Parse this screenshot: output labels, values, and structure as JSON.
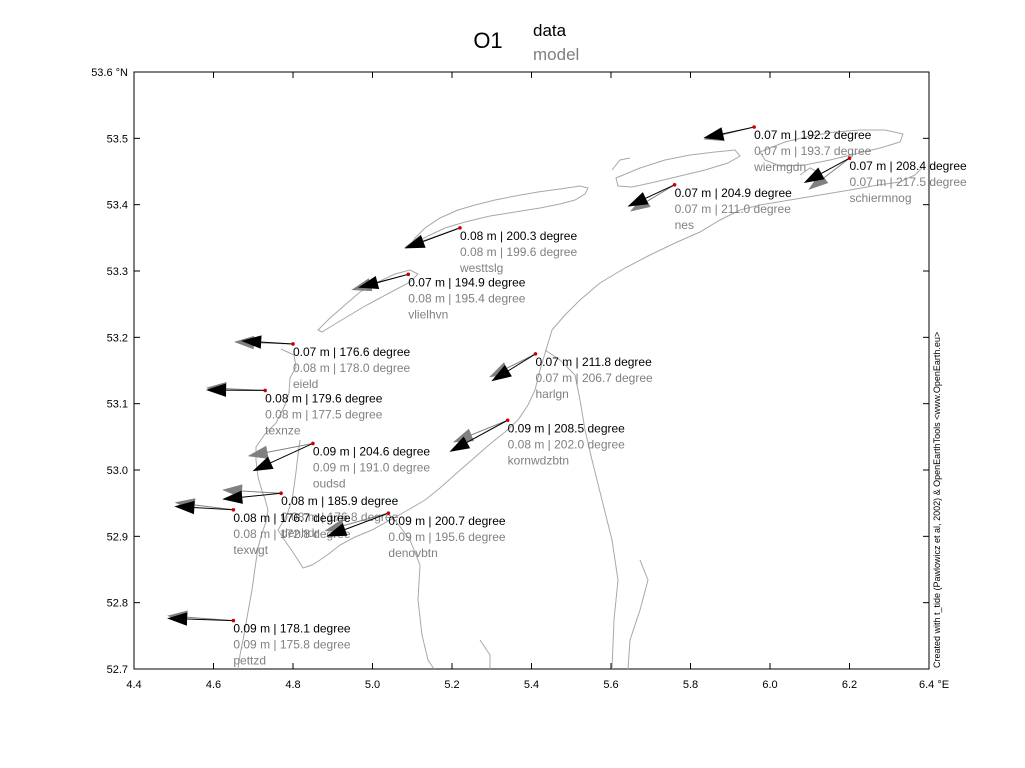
{
  "title": {
    "main": "O1",
    "legend_data": "data",
    "legend_model": "model"
  },
  "axes": {
    "xlim": [
      4.4,
      6.4
    ],
    "ylim": [
      52.7,
      53.6
    ],
    "x_ticks": [
      "4.4",
      "4.6",
      "4.8",
      "5.0",
      "5.2",
      "5.4",
      "5.6",
      "5.8",
      "6.0",
      "6.2",
      "6.4 °E"
    ],
    "y_ticks": [
      "52.7",
      "52.8",
      "52.9",
      "53.0",
      "53.1",
      "53.2",
      "53.3",
      "53.4",
      "53.5",
      "53.6 °N"
    ]
  },
  "credit": "Created with t_tide (Pawlowicz et al, 2002) & OpenEarthTools <www.OpenEarth.eu>",
  "colors": {
    "data": "#000000",
    "model": "#808080",
    "coast": "#a0a0a0",
    "station_marker": "#cc0000"
  },
  "stations": [
    {
      "name": "wiermgdn",
      "lon": 5.96,
      "lat": 53.517,
      "data_text": "0.07  m | 192.2 degree",
      "model_text": "0.07  m | 193.7 degree",
      "data_amp": 0.07,
      "data_phase": 192.2,
      "model_amp": 0.07,
      "model_phase": 193.7
    },
    {
      "name": "schiermnog",
      "lon": 6.2,
      "lat": 53.47,
      "data_text": "0.07  m | 208.4 degree",
      "model_text": "0.07  m | 217.5 degree",
      "data_amp": 0.07,
      "data_phase": 208.4,
      "model_amp": 0.07,
      "model_phase": 217.5
    },
    {
      "name": "nes",
      "lon": 5.76,
      "lat": 53.43,
      "data_text": "0.07  m | 204.9 degree",
      "model_text": "0.07  m | 211.0 degree",
      "data_amp": 0.07,
      "data_phase": 204.9,
      "model_amp": 0.07,
      "model_phase": 211.0
    },
    {
      "name": "westtslg",
      "lon": 5.22,
      "lat": 53.365,
      "data_text": "0.08  m | 200.3 degree",
      "model_text": "0.08  m | 199.6 degree",
      "data_amp": 0.08,
      "data_phase": 200.3,
      "model_amp": 0.08,
      "model_phase": 199.6
    },
    {
      "name": "vlielhvn",
      "lon": 5.09,
      "lat": 53.295,
      "data_text": "0.07  m | 194.9 degree",
      "model_text": "0.08  m | 195.4 degree",
      "data_amp": 0.07,
      "data_phase": 194.9,
      "model_amp": 0.08,
      "model_phase": 195.4
    },
    {
      "name": "eield",
      "lon": 4.8,
      "lat": 53.19,
      "data_text": "0.07  m | 176.6 degree",
      "model_text": "0.08  m | 178.0 degree",
      "data_amp": 0.07,
      "data_phase": 176.6,
      "model_amp": 0.08,
      "model_phase": 178.0
    },
    {
      "name": "harlgn",
      "lon": 5.41,
      "lat": 53.175,
      "data_text": "0.07  m | 211.8 degree",
      "model_text": "0.07  m | 206.7 degree",
      "data_amp": 0.07,
      "data_phase": 211.8,
      "model_amp": 0.07,
      "model_phase": 206.7
    },
    {
      "name": "texnze",
      "lon": 4.73,
      "lat": 53.12,
      "data_text": "0.08  m | 179.6 degree",
      "model_text": "0.08  m | 177.5 degree",
      "data_amp": 0.08,
      "data_phase": 179.6,
      "model_amp": 0.08,
      "model_phase": 177.5
    },
    {
      "name": "kornwdzbtn",
      "lon": 5.34,
      "lat": 53.075,
      "data_text": "0.09  m | 208.5 degree",
      "model_text": "0.08  m | 202.0 degree",
      "data_amp": 0.09,
      "data_phase": 208.5,
      "model_amp": 0.08,
      "model_phase": 202.0
    },
    {
      "name": "oudsd",
      "lon": 4.85,
      "lat": 53.04,
      "data_text": "0.09  m | 204.6 degree",
      "model_text": "0.09  m | 191.0 degree",
      "data_amp": 0.09,
      "data_phase": 204.6,
      "model_amp": 0.09,
      "model_phase": 191.0
    },
    {
      "name": "denhdr",
      "lon": 4.77,
      "lat": 52.965,
      "data_text": "0.08  m | 185.9 degree",
      "model_text": "0.08  m | 176.8 degree",
      "data_amp": 0.08,
      "data_phase": 185.9,
      "model_amp": 0.08,
      "model_phase": 176.8
    },
    {
      "name": "texwgt",
      "lon": 4.65,
      "lat": 52.94,
      "data_text": "0.08  m | 176.7 degree",
      "model_text": "0.08  m | 172.8 degree",
      "data_amp": 0.08,
      "data_phase": 176.7,
      "model_amp": 0.08,
      "model_phase": 172.8
    },
    {
      "name": "denovbtn",
      "lon": 5.04,
      "lat": 52.935,
      "data_text": "0.09  m | 200.7 degree",
      "model_text": "0.09  m | 195.6 degree",
      "data_amp": 0.09,
      "data_phase": 200.7,
      "model_amp": 0.09,
      "model_phase": 195.6
    },
    {
      "name": "pettzd",
      "lon": 4.65,
      "lat": 52.773,
      "data_text": "0.09  m | 178.1 degree",
      "model_text": "0.09  m | 175.8 degree",
      "data_amp": 0.09,
      "data_phase": 178.1,
      "model_amp": 0.09,
      "model_phase": 175.8
    }
  ]
}
